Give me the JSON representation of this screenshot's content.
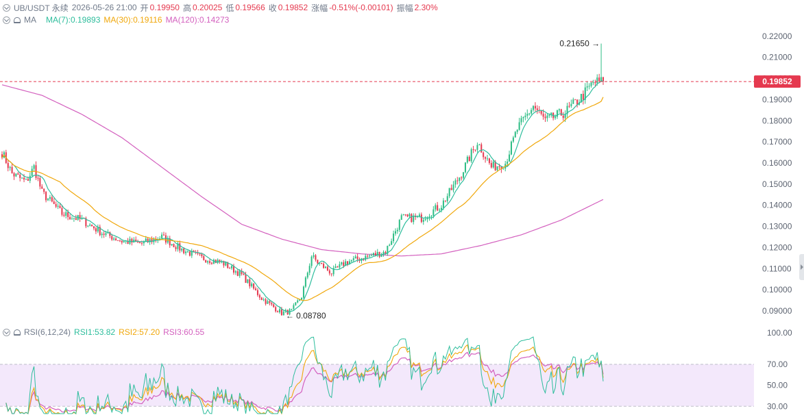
{
  "header": {
    "symbol": "UB/USDT 永续",
    "datetime": "2026-05-26 21:00",
    "open_label": "开",
    "open": "0.19950",
    "high_label": "高",
    "high": "0.20025",
    "low_label": "低",
    "low": "0.19566",
    "close_label": "收",
    "close": "0.19852",
    "change_label": "涨幅",
    "change": "-0.51%(-0.00101)",
    "amp_label": "振幅",
    "amp": "2.30%"
  },
  "ma_legend": {
    "label": "MA",
    "ma7": "MA(7):0.19893",
    "ma30": "MA(30):0.19116",
    "ma120": "MA(120):0.14273"
  },
  "rsi_legend": {
    "label": "RSI(6,12,24)",
    "rsi1": "RSI1:53.82",
    "rsi2": "RSI2:57.20",
    "rsi3": "RSI3:60.55"
  },
  "colors": {
    "up": "#2ebd85",
    "down": "#e5394f",
    "ma7": "#2dbd9c",
    "ma30": "#f0a70a",
    "ma120": "#d35fbe",
    "rsi1": "#2dbd9c",
    "rsi2": "#f0a70a",
    "rsi3": "#d35fbe",
    "rsi_band": "#f3e8fb",
    "last_price_tag": "#e5394f"
  },
  "chart_data": [
    {
      "type": "candlestick",
      "y_ticks": [
        "0.22000",
        "0.21000",
        "0.20000",
        "0.19000",
        "0.18000",
        "0.17000",
        "0.16000",
        "0.15000",
        "0.14000",
        "0.13000",
        "0.12000",
        "0.11000",
        "0.10000",
        "0.09000"
      ],
      "ylim": [
        0.0845,
        0.2248
      ],
      "last_price": 0.19852,
      "last_price_label": "0.19852",
      "max_annotation": {
        "value": 0.2165,
        "label": "0.21650 →"
      },
      "min_annotation": {
        "value": 0.0878,
        "label": "← 0.08780"
      },
      "keypoints": [
        [
          0,
          0.165
        ],
        [
          5,
          0.155
        ],
        [
          12,
          0.151
        ],
        [
          16,
          0.158
        ],
        [
          20,
          0.146
        ],
        [
          30,
          0.136
        ],
        [
          40,
          0.133
        ],
        [
          50,
          0.127
        ],
        [
          60,
          0.123
        ],
        [
          70,
          0.122
        ],
        [
          80,
          0.125
        ],
        [
          90,
          0.119
        ],
        [
          100,
          0.115
        ],
        [
          110,
          0.113
        ],
        [
          120,
          0.107
        ],
        [
          130,
          0.096
        ],
        [
          140,
          0.089
        ],
        [
          145,
          0.09
        ],
        [
          150,
          0.097
        ],
        [
          155,
          0.116
        ],
        [
          158,
          0.113
        ],
        [
          165,
          0.108
        ],
        [
          172,
          0.113
        ],
        [
          180,
          0.115
        ],
        [
          192,
          0.118
        ],
        [
          200,
          0.134
        ],
        [
          210,
          0.134
        ],
        [
          220,
          0.14
        ],
        [
          230,
          0.155
        ],
        [
          238,
          0.17
        ],
        [
          245,
          0.158
        ],
        [
          252,
          0.16
        ],
        [
          258,
          0.176
        ],
        [
          266,
          0.187
        ],
        [
          272,
          0.18
        ],
        [
          282,
          0.184
        ],
        [
          290,
          0.191
        ],
        [
          296,
          0.198
        ],
        [
          301,
          0.19852
        ]
      ],
      "ma7": {
        "value": 0.19893
      },
      "ma30": {
        "value": 0.19116
      },
      "ma120_keypoints": [
        [
          0,
          0.197
        ],
        [
          20,
          0.192
        ],
        [
          40,
          0.183
        ],
        [
          60,
          0.172
        ],
        [
          80,
          0.158
        ],
        [
          100,
          0.144
        ],
        [
          120,
          0.131
        ],
        [
          140,
          0.124
        ],
        [
          160,
          0.119
        ],
        [
          180,
          0.117
        ],
        [
          200,
          0.116
        ],
        [
          220,
          0.117
        ],
        [
          240,
          0.121
        ],
        [
          260,
          0.126
        ],
        [
          280,
          0.133
        ],
        [
          301,
          0.14273
        ]
      ]
    },
    {
      "type": "line",
      "title": "RSI(6,12,24)",
      "y_ticks": [
        "100.00",
        "70.00",
        "50.00",
        "30.00"
      ],
      "ylim": [
        23,
        100
      ],
      "band": [
        30,
        70
      ],
      "rsi6": {
        "value": 53.82
      },
      "rsi12": {
        "value": 57.2
      },
      "rsi24": {
        "value": 60.55
      }
    }
  ]
}
